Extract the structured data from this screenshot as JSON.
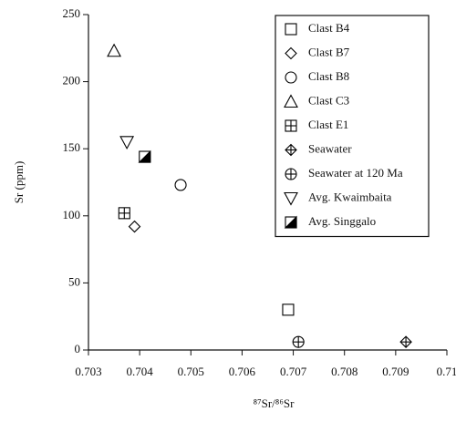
{
  "chart_data": {
    "type": "scatter",
    "xlabel": "⁸⁷Sr/⁸⁶Sr",
    "ylabel": "Sr (ppm)",
    "xlim": [
      0.703,
      0.71
    ],
    "xticks": [
      0.703,
      0.704,
      0.705,
      0.706,
      0.707,
      0.708,
      0.709,
      0.71
    ],
    "ylim": [
      0,
      250
    ],
    "yticks": [
      0,
      50,
      100,
      150,
      200,
      250
    ],
    "series": [
      {
        "name": "Clast B4",
        "marker": "square",
        "color": "#000000",
        "x": [
          0.7069
        ],
        "values": [
          30
        ]
      },
      {
        "name": "Clast B7",
        "marker": "diamond",
        "color": "#000000",
        "x": [
          0.7039
        ],
        "values": [
          92
        ]
      },
      {
        "name": "Clast B8",
        "marker": "circle",
        "color": "#000000",
        "x": [
          0.7048
        ],
        "values": [
          123
        ]
      },
      {
        "name": "Clast C3",
        "marker": "triangle",
        "color": "#000000",
        "x": [
          0.7035
        ],
        "values": [
          223
        ]
      },
      {
        "name": "Clast E1",
        "marker": "square-plus",
        "color": "#000000",
        "x": [
          0.7037
        ],
        "values": [
          102
        ]
      },
      {
        "name": "Seawater",
        "marker": "diamond-plus",
        "color": "#000000",
        "x": [
          0.7092
        ],
        "values": [
          6
        ]
      },
      {
        "name": "Seawater at 120 Ma",
        "marker": "circle-plus",
        "color": "#000000",
        "x": [
          0.7071
        ],
        "values": [
          6
        ]
      },
      {
        "name": "Avg. Kwaimbaita",
        "marker": "triangle-down",
        "color": "#000000",
        "x": [
          0.70375
        ],
        "values": [
          155
        ]
      },
      {
        "name": "Avg. Singgalo",
        "marker": "square-half",
        "color": "#000000",
        "x": [
          0.7041
        ],
        "values": [
          144
        ]
      }
    ]
  }
}
